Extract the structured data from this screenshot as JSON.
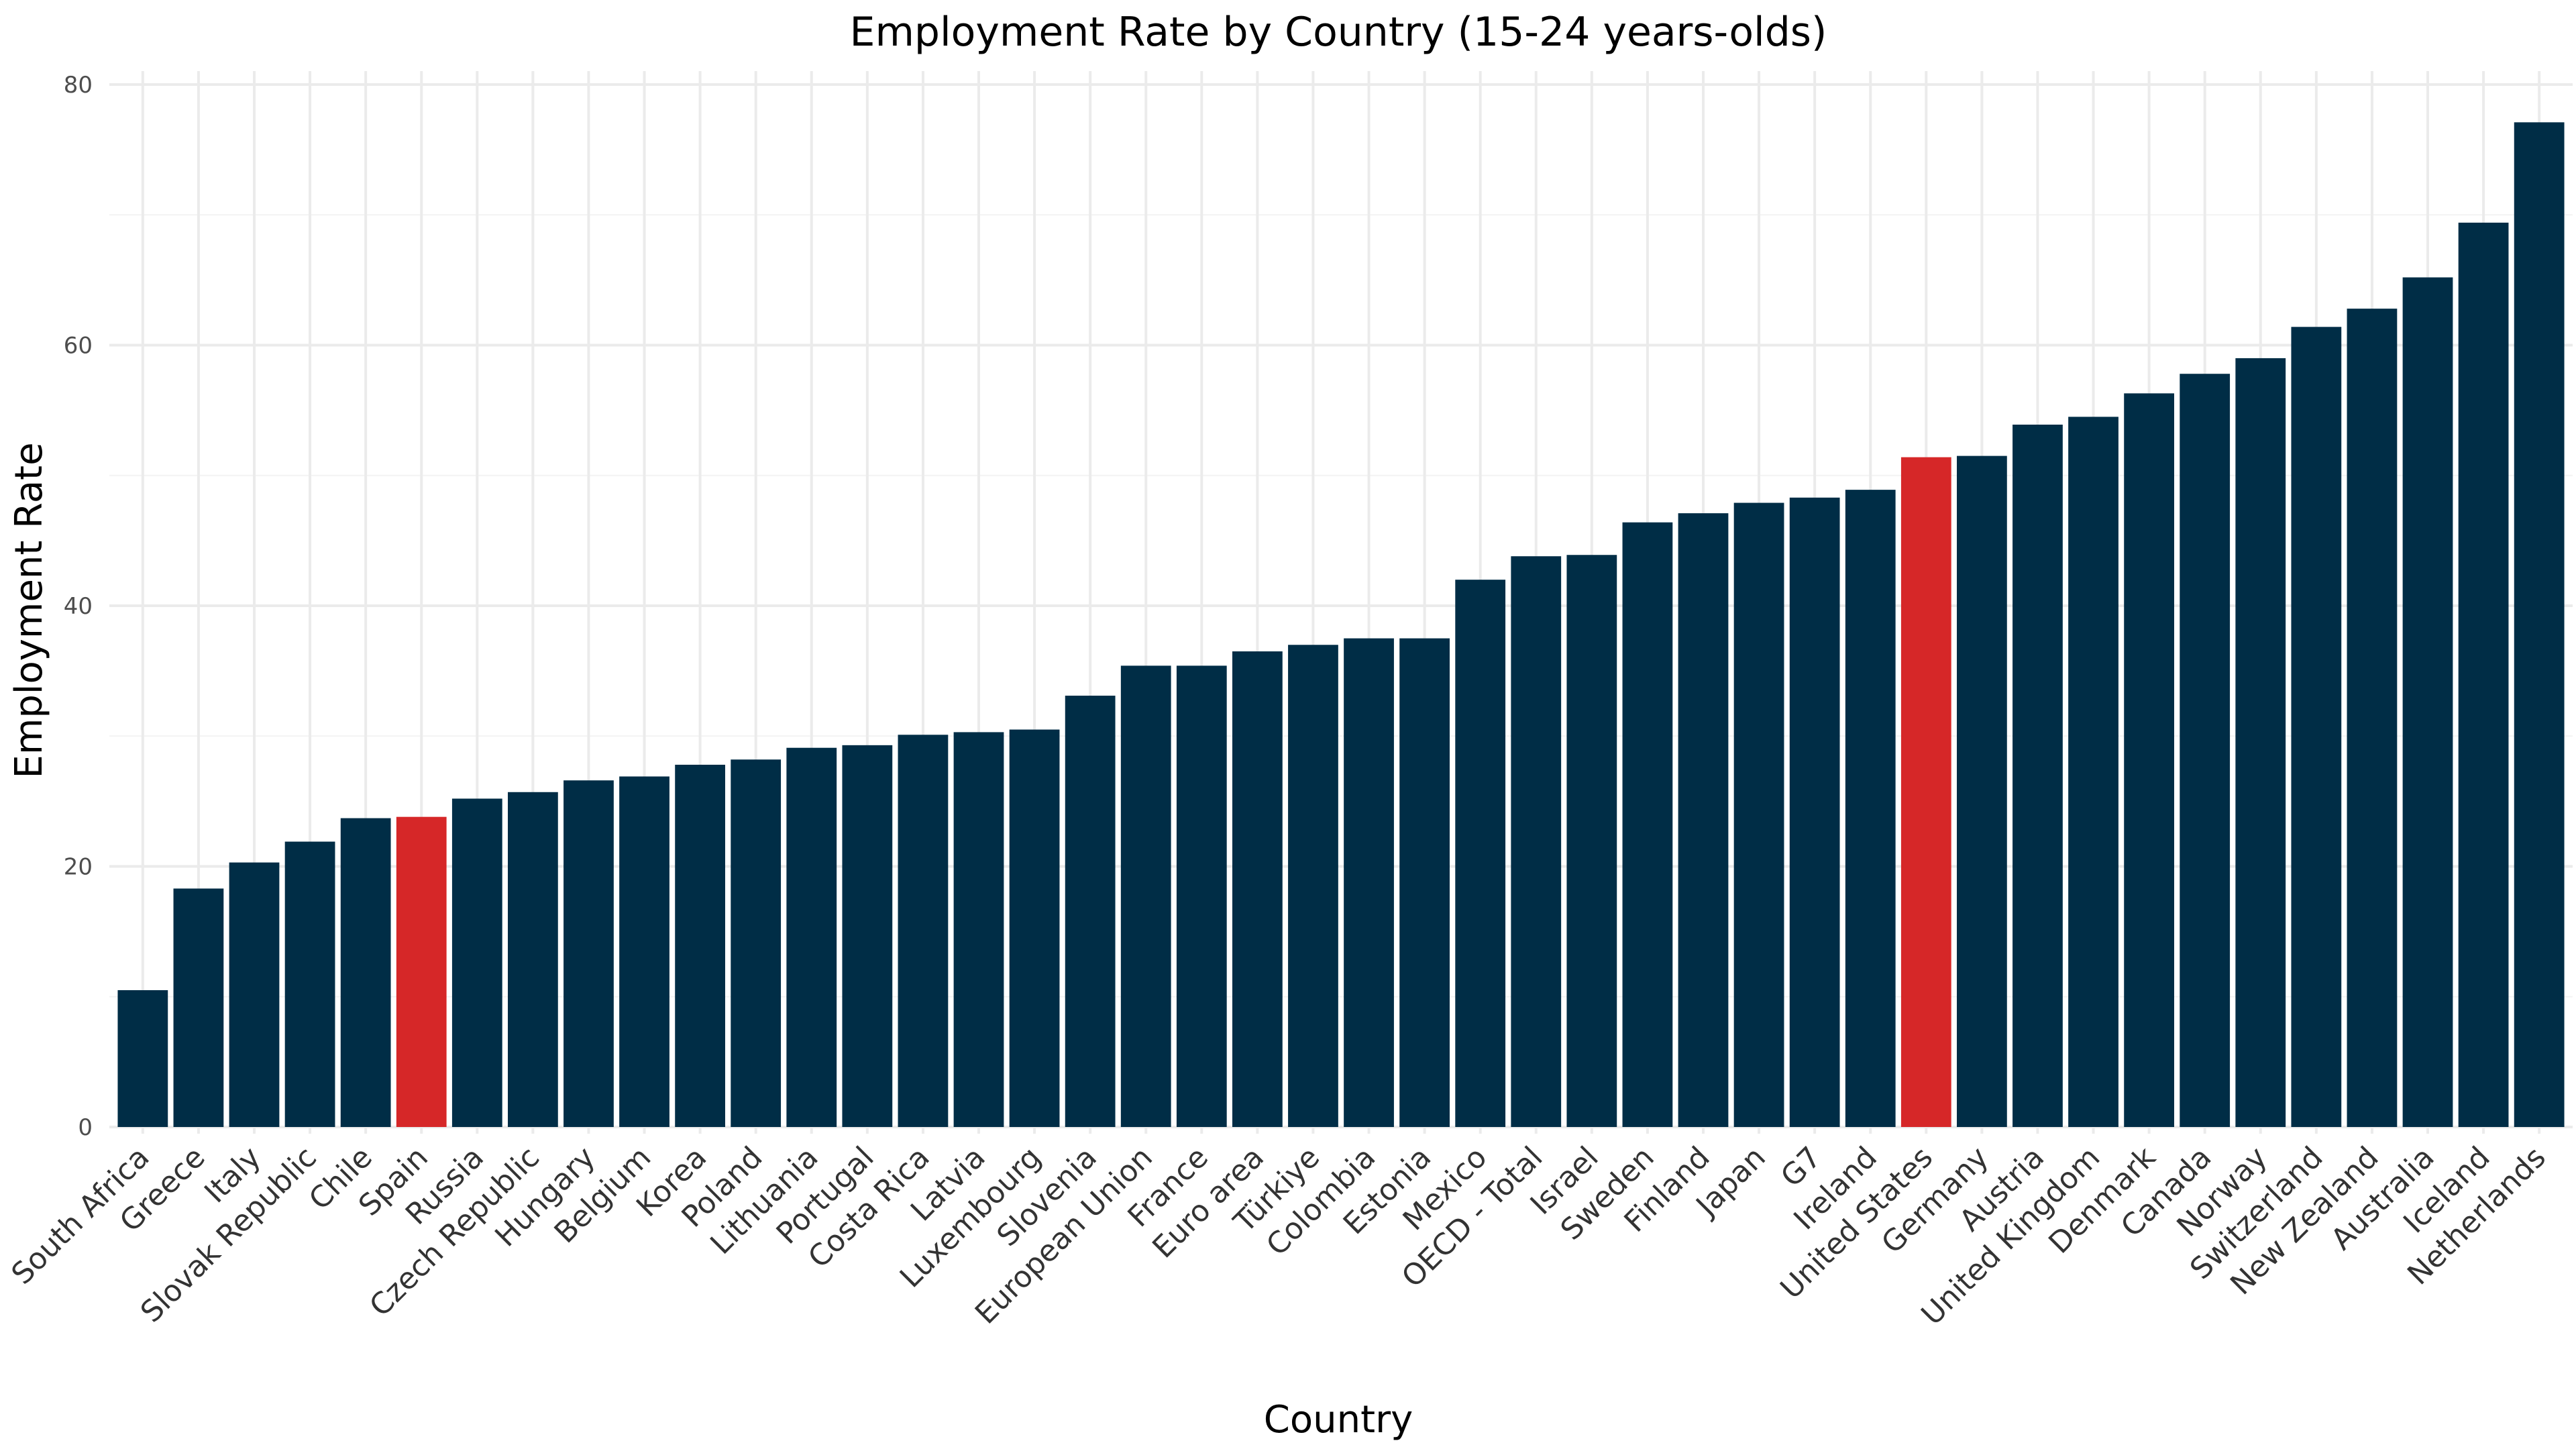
{
  "chart_data": {
    "type": "bar",
    "title": "Employment Rate by Country (15-24 years-olds)",
    "xlabel": "Country",
    "ylabel": "Employment Rate",
    "ylim": [
      0,
      80
    ],
    "yticks": [
      0,
      20,
      40,
      60,
      80
    ],
    "grid": true,
    "legend": "none",
    "colors": {
      "default": "#002d46",
      "highlight": "#d62728"
    },
    "highlighted": [
      "Spain",
      "United States"
    ],
    "categories": [
      "South Africa",
      "Greece",
      "Italy",
      "Slovak Republic",
      "Chile",
      "Spain",
      "Russia",
      "Czech Republic",
      "Hungary",
      "Belgium",
      "Korea",
      "Poland",
      "Lithuania",
      "Portugal",
      "Costa Rica",
      "Latvia",
      "Luxembourg",
      "Slovenia",
      "European Union",
      "France",
      "Euro area",
      "Türkiye",
      "Colombia",
      "Estonia",
      "Mexico",
      "OECD - Total",
      "Israel",
      "Sweden",
      "Finland",
      "Japan",
      "G7",
      "Ireland",
      "United States",
      "Germany",
      "Austria",
      "United Kingdom",
      "Denmark",
      "Canada",
      "Norway",
      "Switzerland",
      "New Zealand",
      "Australia",
      "Iceland",
      "Netherlands"
    ],
    "values": [
      10.5,
      18.3,
      20.3,
      21.9,
      23.7,
      23.8,
      25.2,
      25.7,
      26.6,
      26.9,
      27.8,
      28.2,
      29.1,
      29.3,
      30.1,
      30.3,
      30.5,
      33.1,
      35.4,
      35.4,
      36.5,
      37.0,
      37.5,
      37.5,
      42.0,
      43.8,
      43.9,
      46.4,
      47.1,
      47.9,
      48.3,
      48.9,
      51.4,
      51.5,
      53.9,
      54.5,
      56.3,
      57.8,
      59.0,
      61.4,
      62.8,
      65.2,
      69.4,
      77.1
    ]
  }
}
